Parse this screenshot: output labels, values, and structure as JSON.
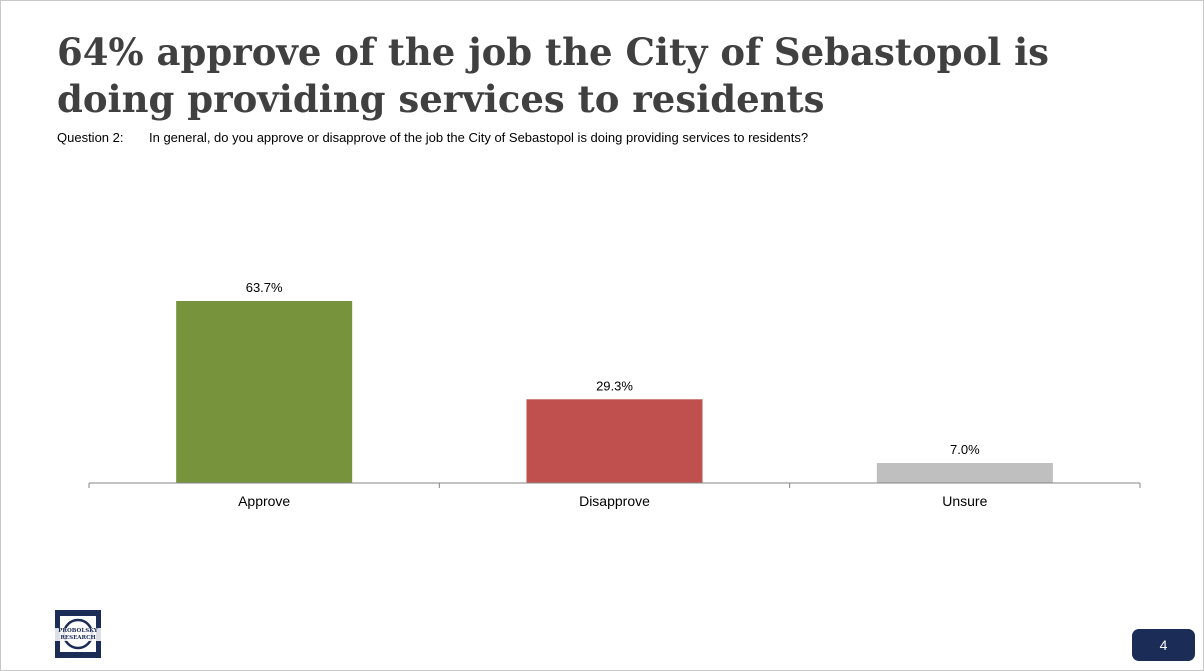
{
  "slide": {
    "title": "64% approve of the job the City of Sebastopol is doing providing services to residents",
    "question_label": "Question 2:",
    "question_text": "In general, do you approve or disapprove of the job the City of Sebastopol is doing providing services to residents?",
    "page_number": "4"
  },
  "logo": {
    "text": "PROBOLSKY RESEARCH",
    "icon": "probolsky-research-logo-icon",
    "color": "#1b2c57"
  },
  "chart_data": {
    "type": "bar",
    "categories": [
      "Approve",
      "Disapprove",
      "Unsure"
    ],
    "values": [
      63.7,
      29.3,
      7.0
    ],
    "data_labels": [
      "63.7%",
      "29.3%",
      "7.0%"
    ],
    "colors": [
      "#77933c",
      "#c0504d",
      "#bfbfbf"
    ],
    "ylim": [
      0,
      70
    ],
    "grid": false,
    "legend": "none"
  }
}
